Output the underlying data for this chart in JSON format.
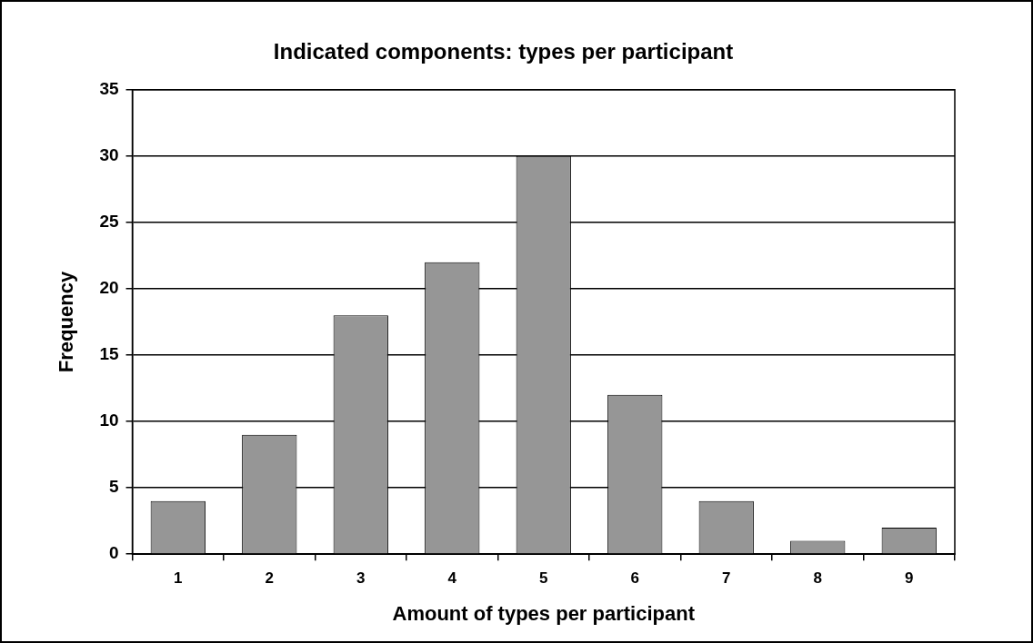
{
  "chart_data": {
    "type": "bar",
    "title": "Indicated components: types per participant",
    "xlabel": "Amount of types per participant",
    "ylabel": "Frequency",
    "categories": [
      "1",
      "2",
      "3",
      "4",
      "5",
      "6",
      "7",
      "8",
      "9"
    ],
    "values": [
      4,
      9,
      18,
      22,
      30,
      12,
      4,
      1,
      2
    ],
    "color": "#969696",
    "ylim": [
      0,
      35
    ],
    "yticks": [
      0,
      5,
      10,
      15,
      20,
      25,
      30,
      35
    ],
    "grid": "y"
  }
}
